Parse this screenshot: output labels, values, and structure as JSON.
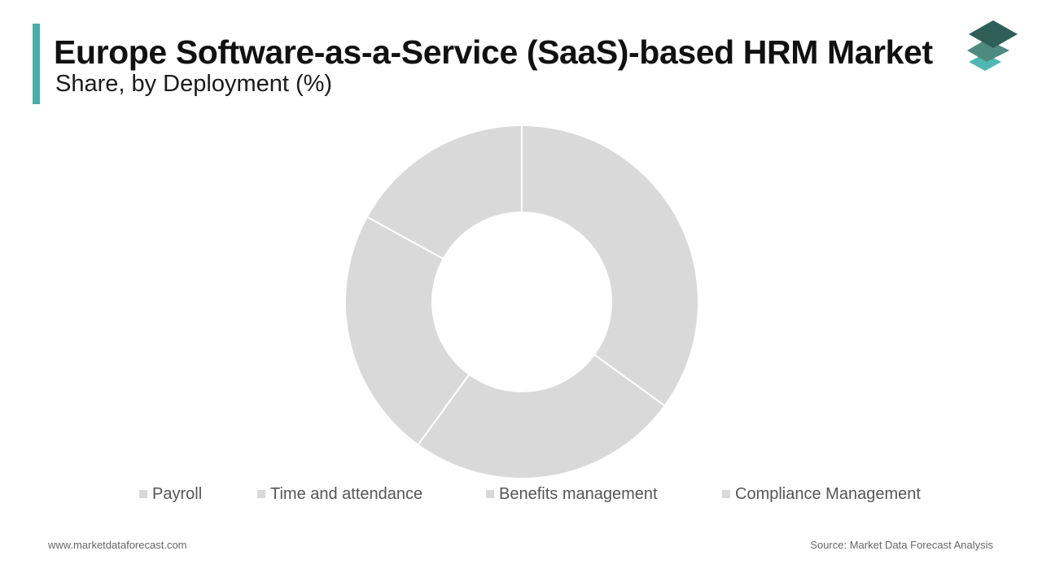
{
  "header": {
    "title": "Europe Software-as-a-Service (SaaS)-based HRM Market",
    "subtitle": "Share, by Deployment (%)"
  },
  "colors": {
    "accent": "#4aaea8",
    "slice": "#d9d9d9",
    "slice_border": "#ffffff",
    "logo_top": "#2f5f58",
    "logo_mid": "#4f8a80",
    "logo_bottom": "#4fb8b2"
  },
  "logo": {
    "icon": "stacked-layers-icon"
  },
  "chart_data": {
    "type": "pie",
    "hole": true,
    "categories": [
      "Payroll",
      "Time and attendance",
      "Benefits management",
      "Compliance Management"
    ],
    "values": [
      35,
      25,
      23,
      17
    ],
    "legend_position": "bottom"
  },
  "footer": {
    "website": "www.marketdataforecast.com",
    "source": "Source: Market Data Forecast Analysis"
  }
}
